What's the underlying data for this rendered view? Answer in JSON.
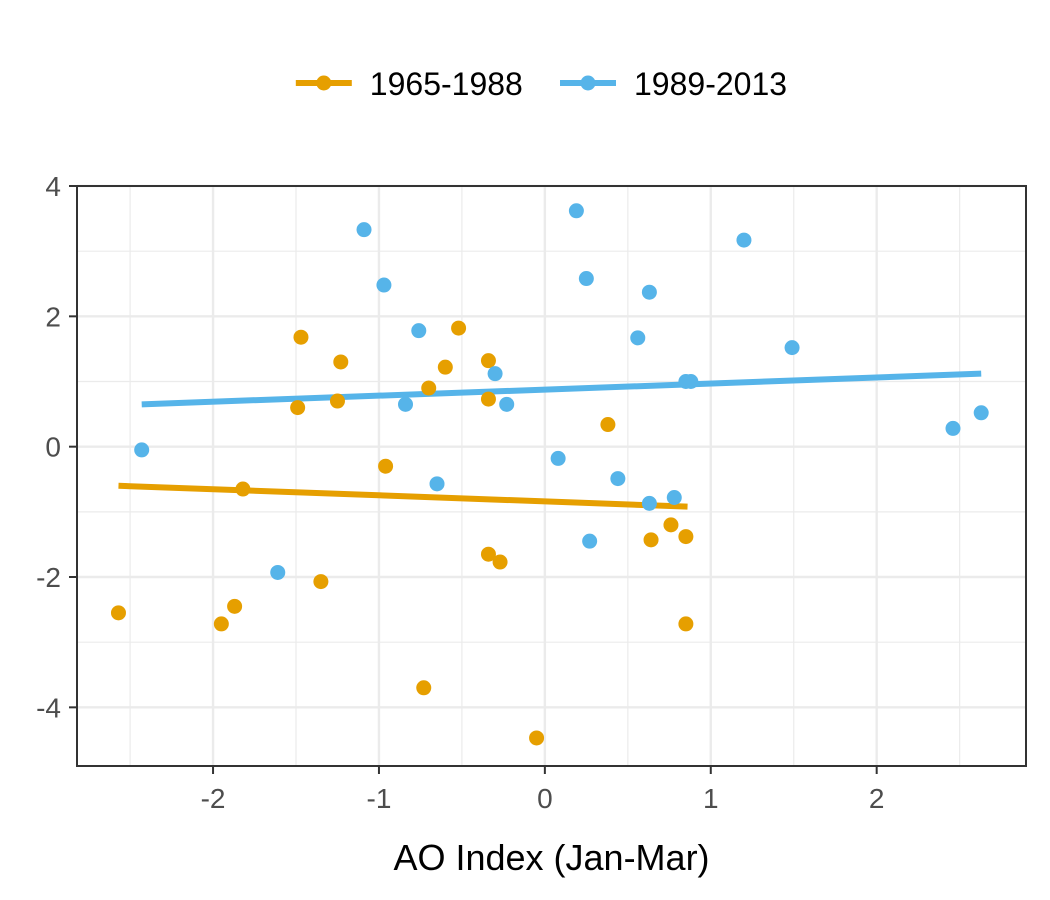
{
  "chart_data": {
    "type": "scatter",
    "title": "",
    "xlabel": "AO Index (Jan-Mar)",
    "ylabel": "",
    "xlim": [
      -2.82,
      2.9
    ],
    "ylim": [
      -4.9,
      4.0
    ],
    "x_ticks": [
      -2,
      -1,
      0,
      1,
      2
    ],
    "x_tick_labels": [
      "-2",
      "-1",
      "0",
      "1",
      "2"
    ],
    "y_ticks": [
      -4,
      -2,
      0,
      2,
      4
    ],
    "y_tick_labels": [
      "-4",
      "-2",
      "0",
      "2",
      "4"
    ],
    "grid": true,
    "legend_position": "top",
    "series": [
      {
        "name": "1965-1988",
        "color": "#E69F00",
        "points": [
          [
            -2.57,
            -2.55
          ],
          [
            -1.95,
            -2.72
          ],
          [
            -1.87,
            -2.45
          ],
          [
            -1.82,
            -0.65
          ],
          [
            -1.49,
            0.6
          ],
          [
            -1.47,
            1.68
          ],
          [
            -1.35,
            -2.07
          ],
          [
            -1.25,
            0.7
          ],
          [
            -1.23,
            1.3
          ],
          [
            -0.96,
            -0.3
          ],
          [
            -0.73,
            -3.7
          ],
          [
            -0.7,
            0.9
          ],
          [
            -0.6,
            1.22
          ],
          [
            -0.52,
            1.82
          ],
          [
            -0.34,
            1.32
          ],
          [
            -0.34,
            0.73
          ],
          [
            -0.34,
            -1.65
          ],
          [
            -0.27,
            -1.77
          ],
          [
            -0.05,
            -4.47
          ],
          [
            0.38,
            0.34
          ],
          [
            0.64,
            -1.43
          ],
          [
            0.76,
            -1.2
          ],
          [
            0.85,
            -1.38
          ],
          [
            0.85,
            -2.72
          ]
        ],
        "trend": [
          [
            -2.57,
            -0.6
          ],
          [
            0.86,
            -0.92
          ]
        ]
      },
      {
        "name": "1989-2013",
        "color": "#56B4E9",
        "points": [
          [
            -2.43,
            -0.05
          ],
          [
            -1.61,
            -1.93
          ],
          [
            -1.09,
            3.33
          ],
          [
            -0.97,
            2.48
          ],
          [
            -0.84,
            0.65
          ],
          [
            -0.76,
            1.78
          ],
          [
            -0.65,
            -0.57
          ],
          [
            -0.3,
            1.12
          ],
          [
            -0.23,
            0.65
          ],
          [
            0.08,
            -0.18
          ],
          [
            0.19,
            3.62
          ],
          [
            0.25,
            2.58
          ],
          [
            0.27,
            -1.45
          ],
          [
            0.44,
            -0.49
          ],
          [
            0.56,
            1.67
          ],
          [
            0.63,
            2.37
          ],
          [
            0.63,
            -0.87
          ],
          [
            0.78,
            -0.78
          ],
          [
            0.85,
            1.0
          ],
          [
            0.88,
            1.0
          ],
          [
            1.2,
            3.17
          ],
          [
            1.49,
            1.52
          ],
          [
            2.46,
            0.28
          ],
          [
            2.63,
            0.52
          ]
        ],
        "trend": [
          [
            -2.43,
            0.65
          ],
          [
            2.63,
            1.12
          ]
        ]
      }
    ]
  }
}
